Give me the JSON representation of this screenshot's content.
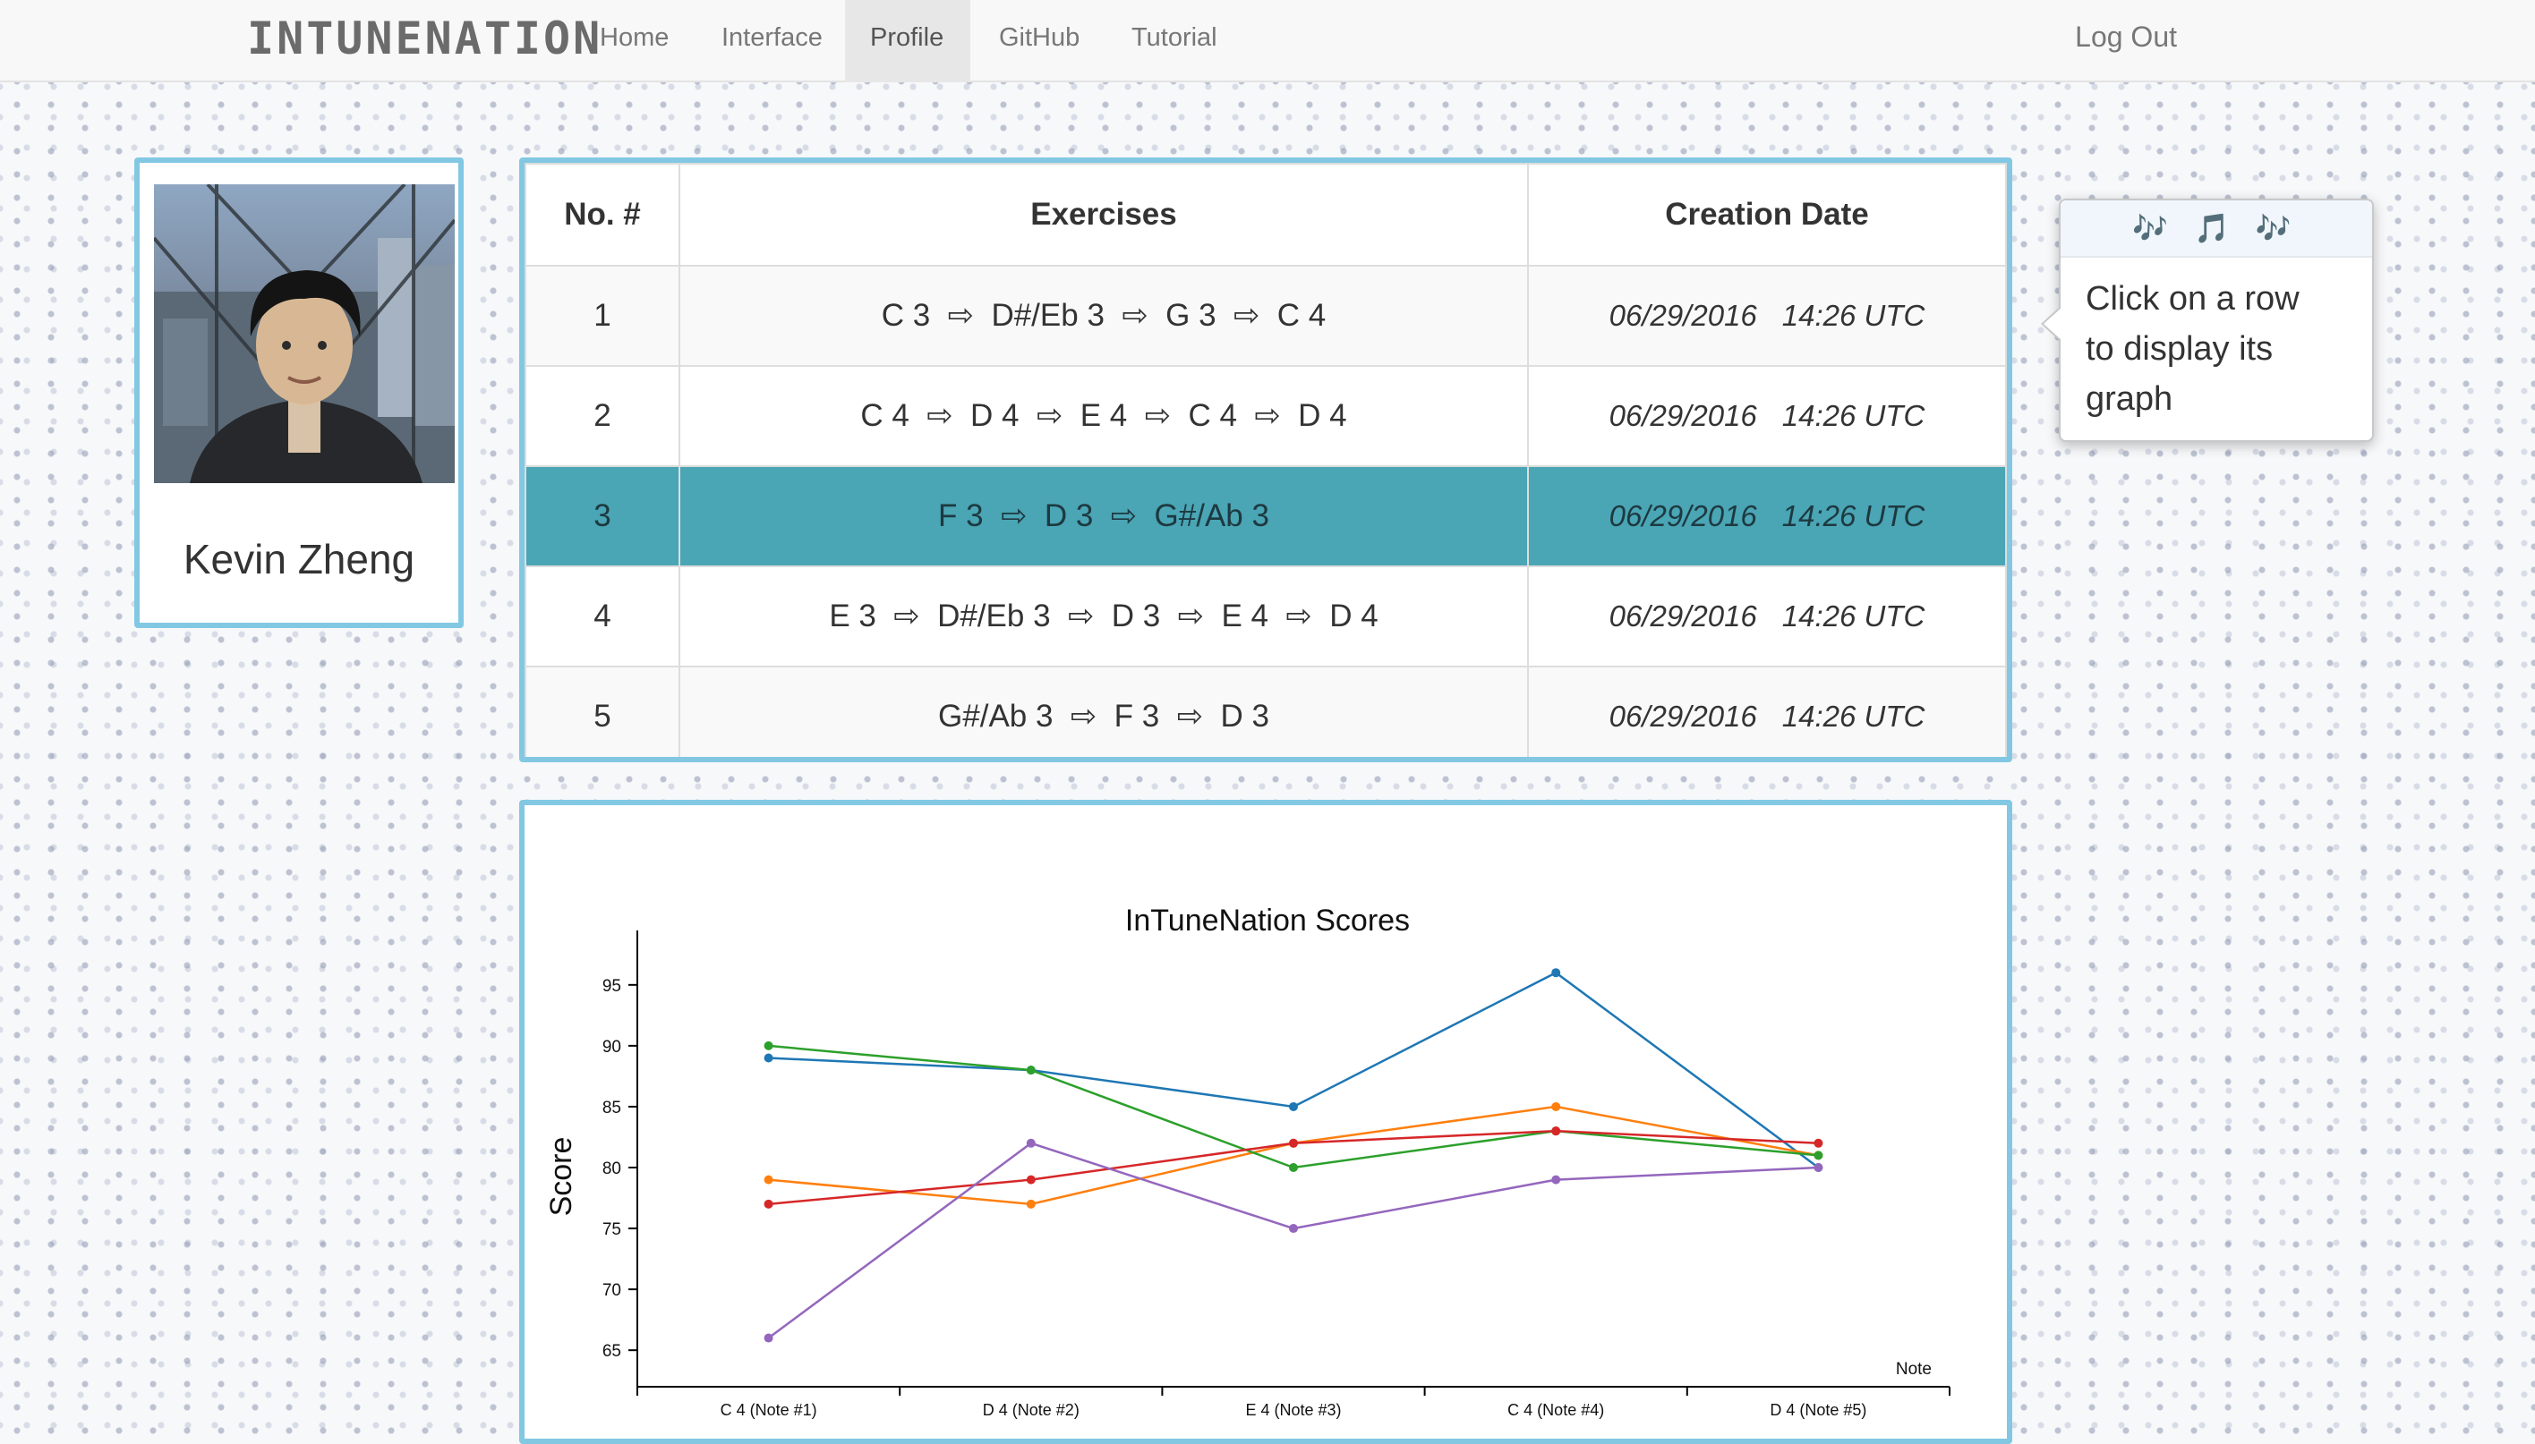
{
  "nav": {
    "brand": "INTUNENATION",
    "items": [
      "Home",
      "Interface",
      "Profile",
      "GitHub",
      "Tutorial"
    ],
    "active": "Profile",
    "logout": "Log Out"
  },
  "profile": {
    "name": "Kevin Zheng"
  },
  "table": {
    "headers": [
      "No. #",
      "Exercises",
      "Creation Date"
    ],
    "rows": [
      {
        "no": "1",
        "exercise": "C 3  ⇨  D#/Eb 3  ⇨  G 3  ⇨  C 4",
        "date": "06/29/2016",
        "time": "14:26 UTC"
      },
      {
        "no": "2",
        "exercise": "C 4  ⇨  D 4  ⇨  E 4  ⇨  C 4  ⇨  D 4",
        "date": "06/29/2016",
        "time": "14:26 UTC"
      },
      {
        "no": "3",
        "exercise": "F 3  ⇨  D 3  ⇨  G#/Ab 3",
        "date": "06/29/2016",
        "time": "14:26 UTC"
      },
      {
        "no": "4",
        "exercise": "E 3  ⇨  D#/Eb 3  ⇨  D 3  ⇨  E 4  ⇨  D 4",
        "date": "06/29/2016",
        "time": "14:26 UTC"
      },
      {
        "no": "5",
        "exercise": "G#/Ab 3  ⇨  F 3  ⇨  D 3",
        "date": "06/29/2016",
        "time": "14:26 UTC"
      }
    ],
    "selected_row": 2
  },
  "tooltip": {
    "header": "🎶 🎵 🎶",
    "lines": [
      "Click on a row",
      "to display its",
      "graph"
    ]
  },
  "chart_data": {
    "type": "line",
    "title": "InTuneNation Scores",
    "ylabel": "Score",
    "xlabel": "Note",
    "categories": [
      "C 4 (Note #1)",
      "D 4 (Note #2)",
      "E 4 (Note #3)",
      "C 4 (Note #4)",
      "D 4 (Note #5)"
    ],
    "ylim": [
      62,
      98
    ],
    "yticks": [
      65,
      70,
      75,
      80,
      85,
      90,
      95
    ],
    "grid": false,
    "series": [
      {
        "color": "#1f77b4",
        "values": [
          89,
          88,
          85,
          96,
          80
        ]
      },
      {
        "color": "#ff7f0e",
        "values": [
          79,
          77,
          82,
          85,
          81
        ]
      },
      {
        "color": "#2ca02c",
        "values": [
          90,
          88,
          80,
          83,
          81
        ]
      },
      {
        "color": "#d62728",
        "values": [
          77,
          79,
          82,
          83,
          82
        ]
      },
      {
        "color": "#9467bd",
        "values": [
          66,
          82,
          75,
          79,
          80
        ]
      }
    ]
  }
}
